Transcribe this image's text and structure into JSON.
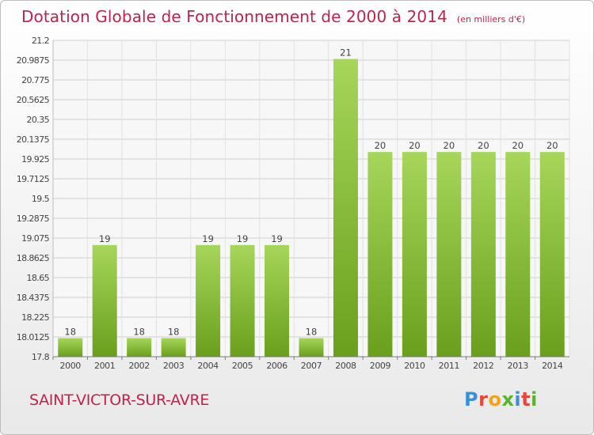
{
  "header": {
    "title": "Dotation Globale de Fonctionnement de 2000 à 2014",
    "subtitle": "(en milliers d'€)"
  },
  "footer": {
    "commune": "SAINT-VICTOR-SUR-AVRE",
    "logo_letters": [
      "P",
      "r",
      "o",
      "x",
      "i",
      "t",
      "i"
    ],
    "logo_colors": [
      "#3a8fd6",
      "#e8463a",
      "#f4a21c",
      "#56b431",
      "#3a8fd6",
      "#e8463a",
      "#56b431"
    ]
  },
  "colors": {
    "bar_light": "#a6d65a",
    "bar_dark": "#6a9f1c",
    "text": "#c0224b",
    "grid": "#cfcfcf",
    "axis_text": "#444444"
  },
  "chart_data": {
    "type": "bar",
    "categories": [
      "2000",
      "2001",
      "2002",
      "2003",
      "2004",
      "2005",
      "2006",
      "2007",
      "2008",
      "2009",
      "2010",
      "2011",
      "2012",
      "2013",
      "2014"
    ],
    "values": [
      18,
      19,
      18,
      18,
      19,
      19,
      19,
      18,
      21,
      20,
      20,
      20,
      20,
      20,
      20
    ],
    "data_labels": [
      "18",
      "19",
      "18",
      "18",
      "19",
      "19",
      "19",
      "18",
      "21",
      "20",
      "20",
      "20",
      "20",
      "20",
      "20"
    ],
    "yticks": [
      "17.8",
      "18.0125",
      "18.225",
      "18.4375",
      "18.65",
      "18.8625",
      "19.075",
      "19.2875",
      "19.5",
      "19.7125",
      "19.925",
      "20.1375",
      "20.35",
      "20.5625",
      "20.775",
      "20.9875",
      "21.2"
    ],
    "ylim": [
      17.8,
      21.2
    ],
    "grid": true
  }
}
